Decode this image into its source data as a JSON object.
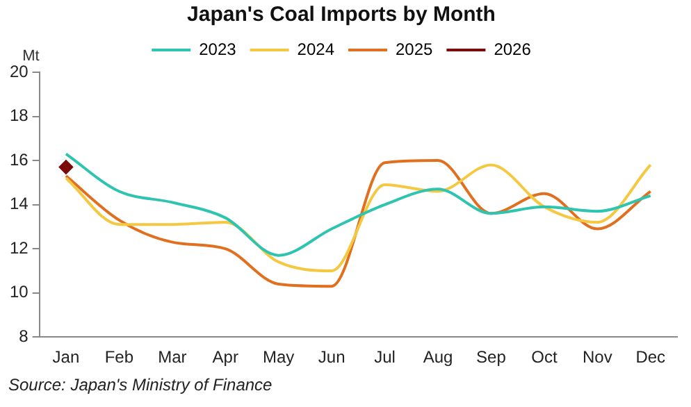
{
  "chart_data": {
    "type": "line",
    "title": "Japan's Coal Imports by Month",
    "ylabel": "Mt",
    "categories": [
      "Jan",
      "Feb",
      "Mar",
      "Apr",
      "May",
      "Jun",
      "Jul",
      "Aug",
      "Sep",
      "Oct",
      "Nov",
      "Dec"
    ],
    "series": [
      {
        "name": "2023",
        "color": "#2ec4b0",
        "values": [
          16.3,
          14.6,
          14.1,
          13.4,
          11.7,
          12.9,
          14.0,
          14.7,
          13.6,
          13.9,
          13.7,
          14.4
        ]
      },
      {
        "name": "2024",
        "color": "#f5c842",
        "values": [
          15.2,
          13.1,
          13.1,
          13.2,
          11.4,
          11.0,
          14.9,
          14.6,
          15.8,
          13.9,
          13.2,
          15.8
        ]
      },
      {
        "name": "2025",
        "color": "#e07020",
        "values": [
          15.3,
          13.3,
          12.3,
          12.0,
          10.4,
          10.3,
          15.9,
          16.0,
          13.6,
          14.5,
          12.9,
          14.6
        ]
      },
      {
        "name": "2026",
        "color": "#7b0a0a",
        "marker": "diamond",
        "values": [
          15.7,
          null,
          null,
          null,
          null,
          null,
          null,
          null,
          null,
          null,
          null,
          null
        ]
      }
    ],
    "ylim": [
      8,
      20
    ],
    "yticks": [
      8,
      10,
      12,
      14,
      16,
      18,
      20
    ],
    "grid": false,
    "legend": "top",
    "marker": "none",
    "annotations": [
      "Source: Japan's Ministry of Finance"
    ]
  }
}
